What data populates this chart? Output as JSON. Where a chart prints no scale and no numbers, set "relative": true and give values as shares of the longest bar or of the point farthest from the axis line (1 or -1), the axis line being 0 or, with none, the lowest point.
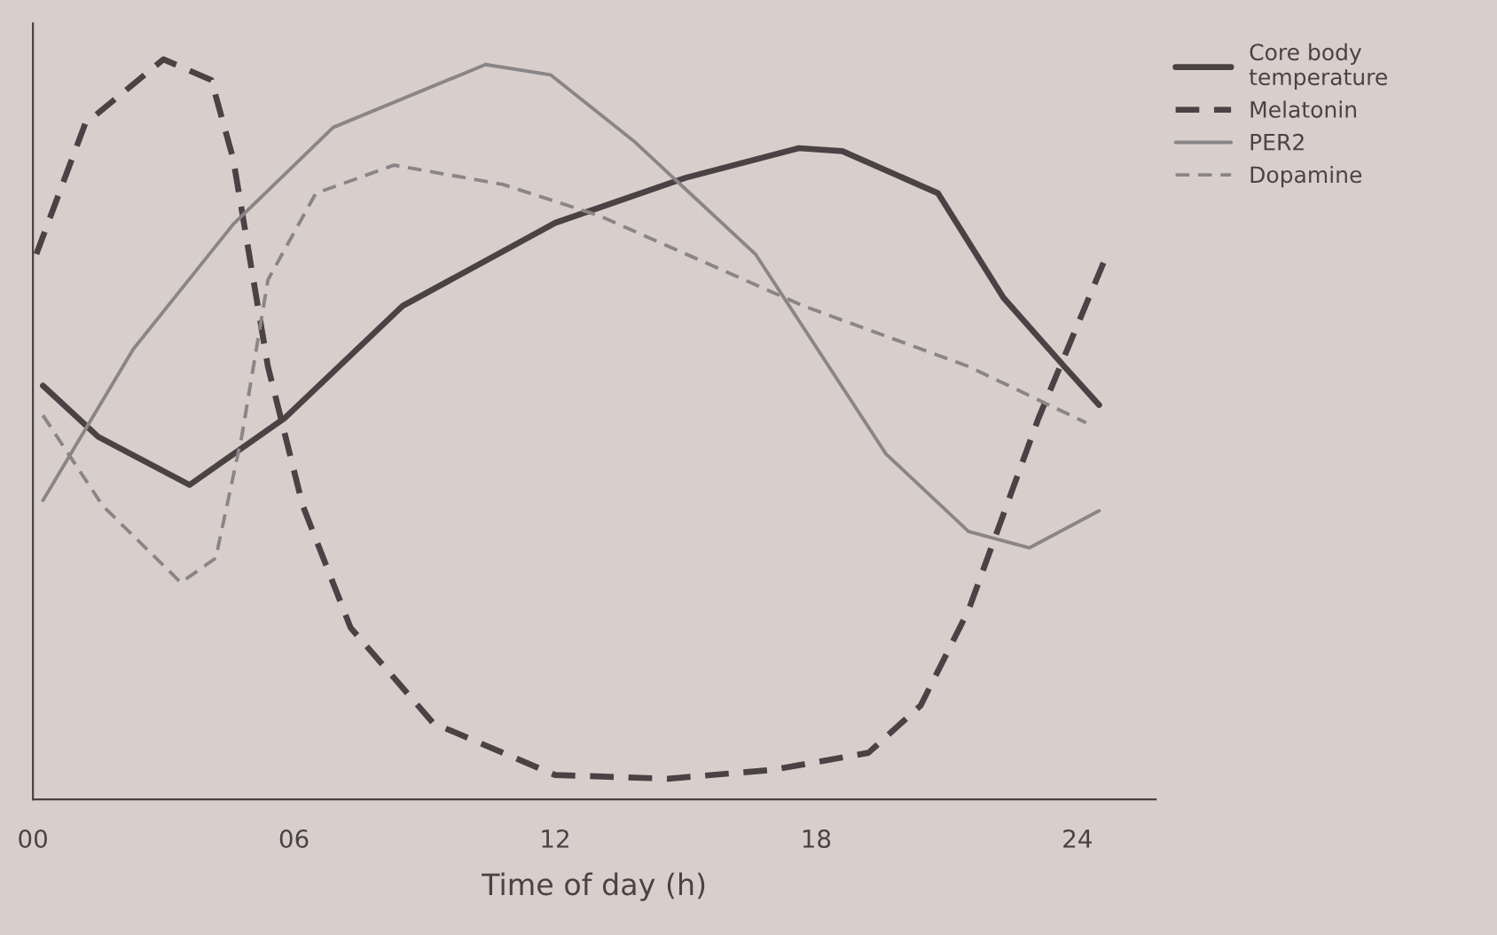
{
  "chart_data": {
    "type": "line",
    "xlabel": "Time of day (h)",
    "relative": true,
    "xlim": [
      0,
      25.8
    ],
    "xticks": [
      {
        "value": 0,
        "label": "00"
      },
      {
        "value": 6,
        "label": "06"
      },
      12,
      18,
      24
    ],
    "tick_labels": "x",
    "grid": false,
    "legend": "top right",
    "marker": "none",
    "series": [
      {
        "name": "Core body temperature",
        "color": "#4a4244",
        "line_style": "solid",
        "x": [
          0.23,
          1.5,
          3.6,
          5.8,
          8.5,
          12,
          15,
          17.6,
          18.6,
          20.8,
          22.3,
          23.7,
          24.5
        ],
        "values": [
          0.559,
          0.49,
          0.425,
          0.516,
          0.667,
          0.779,
          0.84,
          0.88,
          0.876,
          0.819,
          0.678,
          0.585,
          0.533
        ]
      },
      {
        "name": "Melatonin",
        "color": "#4a4244",
        "line_style": "dashed",
        "x": [
          0.08,
          1.2,
          3.0,
          4.1,
          4.6,
          5.4,
          6.2,
          7.3,
          9.2,
          12,
          14.6,
          17,
          19.2,
          20.4,
          21.5,
          23.1,
          24.6
        ],
        "values": [
          0.737,
          0.913,
          1.0,
          0.972,
          0.866,
          0.585,
          0.397,
          0.232,
          0.103,
          0.033,
          0.028,
          0.04,
          0.063,
          0.127,
          0.256,
          0.514,
          0.725
        ]
      },
      {
        "name": "PER2",
        "color": "#8a8587",
        "line_style": "solid",
        "x": [
          0.23,
          2.3,
          4.6,
          6.9,
          10.4,
          11.9,
          13.8,
          16.6,
          19.6,
          21.5,
          22.9,
          24.5
        ],
        "values": [
          0.404,
          0.608,
          0.777,
          0.908,
          0.993,
          0.979,
          0.89,
          0.737,
          0.467,
          0.362,
          0.34,
          0.39
        ]
      },
      {
        "name": "Dopamine",
        "color": "#8a8587",
        "line_style": "dashed",
        "x": [
          0.23,
          1.6,
          3.4,
          4.2,
          4.8,
          5.4,
          6.5,
          8.3,
          10.8,
          13.0,
          17.7,
          21.5,
          24.2
        ],
        "values": [
          0.519,
          0.397,
          0.293,
          0.326,
          0.491,
          0.702,
          0.819,
          0.857,
          0.831,
          0.789,
          0.667,
          0.585,
          0.509
        ]
      }
    ]
  }
}
